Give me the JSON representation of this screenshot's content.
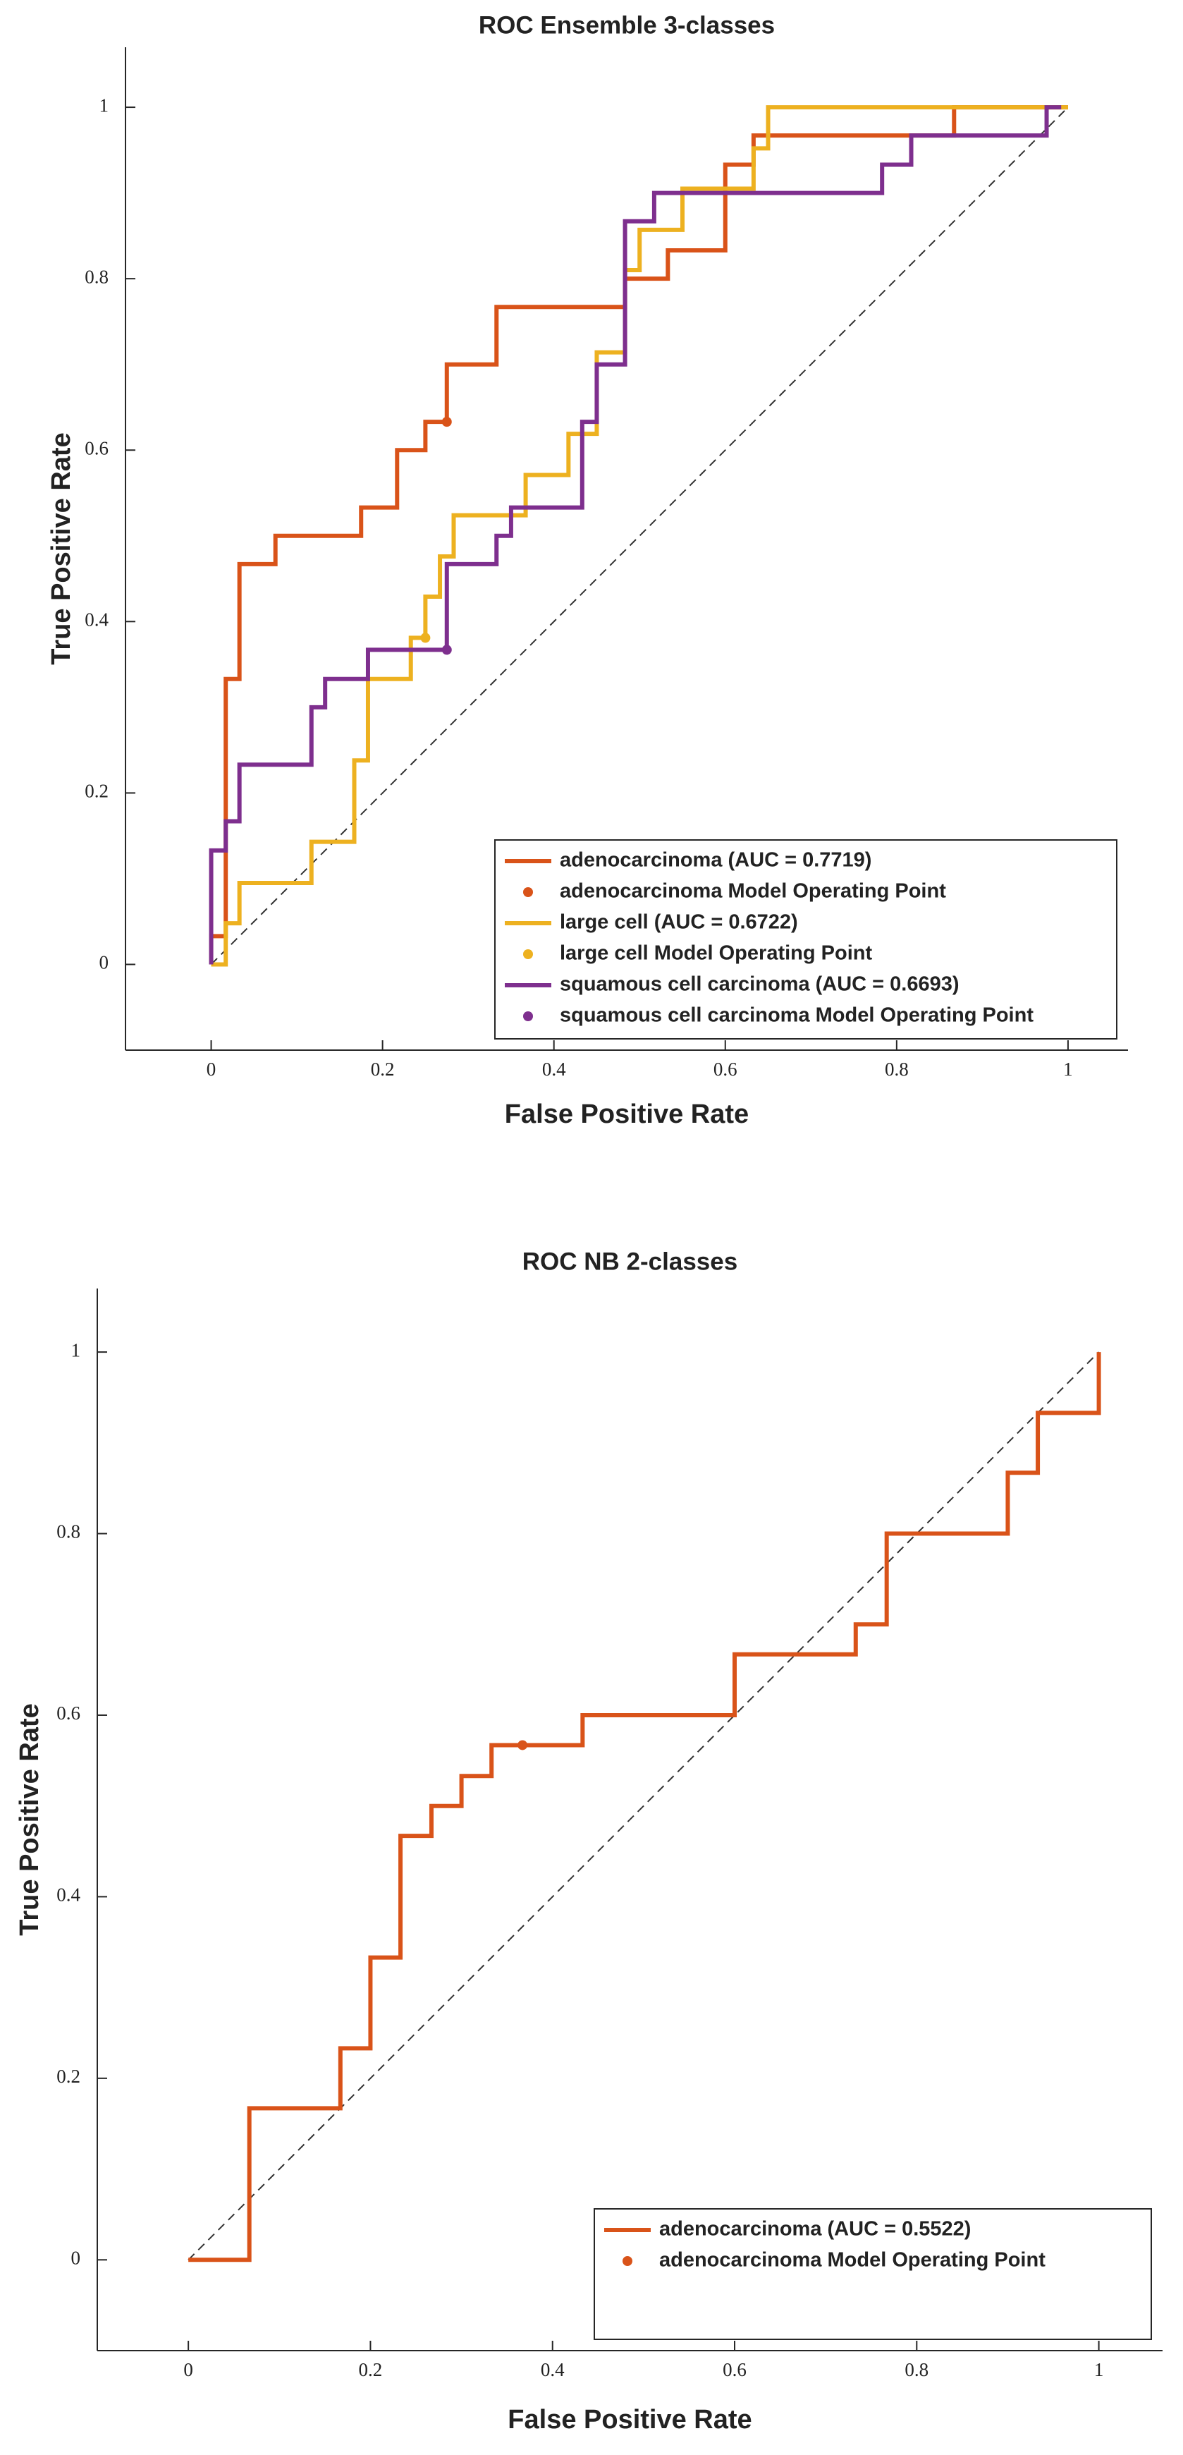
{
  "chart_data": [
    {
      "type": "line",
      "title": "ROC Ensemble 3-classes",
      "x_label": "False Positive Rate",
      "y_label": "True Positive Rate",
      "xlim": [
        -0.1,
        1.07
      ],
      "ylim": [
        -0.1,
        1.07
      ],
      "xticks": [
        0,
        0.2,
        0.4,
        0.6,
        0.8,
        1
      ],
      "yticks": [
        0,
        0.2,
        0.4,
        0.6,
        0.8,
        1
      ],
      "legend": "lower right",
      "grid": false,
      "series": [
        {
          "name": "adenocarcinoma (AUC = 0.7719)",
          "color": "#d95319",
          "mode": "line",
          "x": [
            0,
            0,
            0.017,
            0.017,
            0.033,
            0.033,
            0.075,
            0.075,
            0.175,
            0.175,
            0.217,
            0.217,
            0.25,
            0.25,
            0.275,
            0.275,
            0.333,
            0.333,
            0.483,
            0.483,
            0.533,
            0.533,
            0.6,
            0.6,
            0.633,
            0.633,
            0.867,
            0.867,
            1
          ],
          "values": [
            0,
            0.033,
            0.033,
            0.333,
            0.333,
            0.467,
            0.467,
            0.5,
            0.5,
            0.533,
            0.533,
            0.6,
            0.6,
            0.633,
            0.633,
            0.7,
            0.7,
            0.767,
            0.767,
            0.8,
            0.8,
            0.833,
            0.833,
            0.933,
            0.933,
            0.967,
            0.967,
            1,
            1
          ]
        },
        {
          "name": "adenocarcinoma Model Operating Point",
          "color": "#d95319",
          "mode": "point",
          "x": [
            0.275
          ],
          "values": [
            0.633
          ]
        },
        {
          "name": "large cell (AUC = 0.6722)",
          "color": "#edb120",
          "mode": "line",
          "x": [
            0,
            0.017,
            0.017,
            0.033,
            0.033,
            0.117,
            0.117,
            0.167,
            0.167,
            0.183,
            0.183,
            0.233,
            0.233,
            0.25,
            0.25,
            0.267,
            0.267,
            0.283,
            0.283,
            0.367,
            0.367,
            0.417,
            0.417,
            0.45,
            0.45,
            0.483,
            0.483,
            0.5,
            0.5,
            0.55,
            0.55,
            0.633,
            0.633,
            0.65,
            0.65,
            1
          ],
          "values": [
            0,
            0,
            0.048,
            0.048,
            0.095,
            0.095,
            0.143,
            0.143,
            0.238,
            0.238,
            0.333,
            0.333,
            0.381,
            0.381,
            0.429,
            0.429,
            0.476,
            0.476,
            0.524,
            0.524,
            0.571,
            0.571,
            0.619,
            0.619,
            0.714,
            0.714,
            0.81,
            0.81,
            0.857,
            0.857,
            0.905,
            0.905,
            0.952,
            0.952,
            1,
            1
          ]
        },
        {
          "name": "large cell Model Operating Point",
          "color": "#edb120",
          "mode": "point",
          "x": [
            0.25
          ],
          "values": [
            0.381
          ]
        },
        {
          "name": "squamous cell carcinoma (AUC = 0.6693)",
          "color": "#7e2f8e",
          "mode": "line",
          "x": [
            0,
            0,
            0.017,
            0.017,
            0.033,
            0.033,
            0.117,
            0.117,
            0.133,
            0.133,
            0.183,
            0.183,
            0.275,
            0.275,
            0.333,
            0.333,
            0.35,
            0.35,
            0.433,
            0.433,
            0.45,
            0.45,
            0.483,
            0.483,
            0.517,
            0.517,
            0.783,
            0.783,
            0.817,
            0.817,
            0.975,
            0.975,
            0.992
          ],
          "values": [
            0,
            0.133,
            0.133,
            0.167,
            0.167,
            0.233,
            0.233,
            0.3,
            0.3,
            0.333,
            0.333,
            0.367,
            0.367,
            0.467,
            0.467,
            0.5,
            0.5,
            0.533,
            0.533,
            0.633,
            0.633,
            0.7,
            0.7,
            0.867,
            0.867,
            0.9,
            0.9,
            0.933,
            0.933,
            0.967,
            0.967,
            1,
            1
          ]
        },
        {
          "name": "squamous cell carcinoma Model Operating Point",
          "color": "#7e2f8e",
          "mode": "point",
          "x": [
            0.275
          ],
          "values": [
            0.367
          ]
        }
      ]
    },
    {
      "type": "line",
      "title": "ROC NB 2-classes",
      "x_label": "False Positive Rate",
      "y_label": "True Positive Rate",
      "xlim": [
        -0.1,
        1.07
      ],
      "ylim": [
        -0.1,
        1.07
      ],
      "xticks": [
        0,
        0.2,
        0.4,
        0.6,
        0.8,
        1
      ],
      "yticks": [
        0,
        0.2,
        0.4,
        0.6,
        0.8,
        1
      ],
      "legend": "lower right",
      "grid": false,
      "series": [
        {
          "name": "adenocarcinoma (AUC = 0.5522)",
          "color": "#d95319",
          "mode": "line",
          "x": [
            0,
            0.067,
            0.067,
            0.167,
            0.167,
            0.2,
            0.2,
            0.233,
            0.233,
            0.267,
            0.267,
            0.3,
            0.3,
            0.333,
            0.333,
            0.433,
            0.433,
            0.6,
            0.6,
            0.733,
            0.733,
            0.767,
            0.767,
            0.9,
            0.9,
            0.933,
            0.933,
            1,
            1
          ],
          "values": [
            0,
            0,
            0.167,
            0.167,
            0.233,
            0.233,
            0.333,
            0.333,
            0.467,
            0.467,
            0.5,
            0.5,
            0.533,
            0.533,
            0.567,
            0.567,
            0.6,
            0.6,
            0.667,
            0.667,
            0.7,
            0.7,
            0.8,
            0.8,
            0.867,
            0.867,
            0.933,
            0.933,
            1
          ]
        },
        {
          "name": "adenocarcinoma Model Operating Point",
          "color": "#d95319",
          "mode": "point",
          "x": [
            0.367
          ],
          "values": [
            0.567
          ]
        }
      ]
    }
  ]
}
